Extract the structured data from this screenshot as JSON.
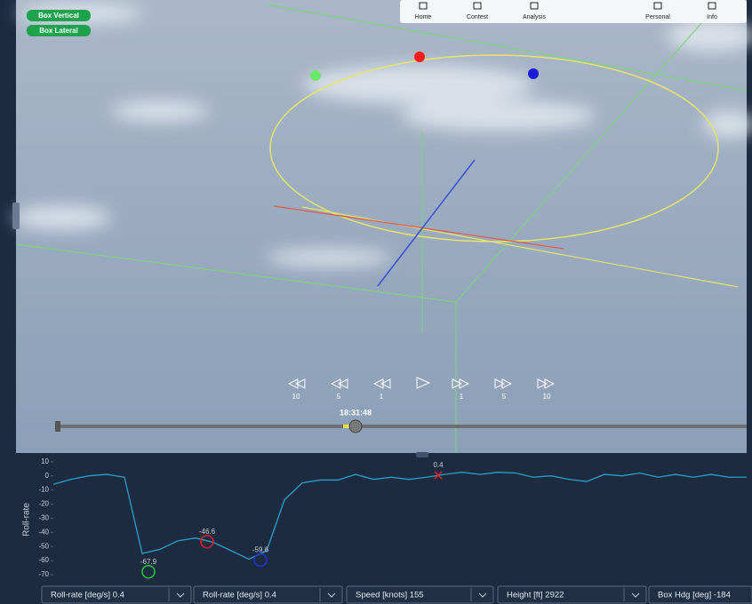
{
  "badges": [
    "Box Vertical",
    "Box Lateral"
  ],
  "nav": [
    "Home",
    "Contest",
    "Analysis",
    "Personal",
    "Info"
  ],
  "playback": {
    "rewind": [
      "10",
      "5",
      "1"
    ],
    "forward": [
      "1",
      "5",
      "10"
    ],
    "time": "18:31:48"
  },
  "plot": {
    "type": "line",
    "y_label": "Roll-rate",
    "color": "#2a9fc9",
    "ylim": [
      -75,
      13
    ],
    "yticks": [
      10,
      0,
      -10,
      -20,
      -30,
      -40,
      -50,
      -60,
      -70
    ],
    "values": [
      -6,
      -2.5,
      0,
      1,
      -1,
      -55,
      -52,
      -46,
      -44,
      -47,
      -53,
      -59,
      -53,
      -17,
      -5,
      -3,
      -3,
      1,
      -2.5,
      -1,
      -2.5,
      -1,
      1,
      2.5,
      1,
      2.5,
      2,
      -1,
      0,
      -2.5,
      -4,
      1,
      0,
      2,
      -1,
      1,
      -1,
      1,
      -1,
      -1
    ],
    "markers": [
      {
        "value": -67.9,
        "color": "#22cc33"
      },
      {
        "value": -46.6,
        "color": "#dd2222"
      },
      {
        "value": -59.6,
        "color": "#2233dd"
      },
      {
        "value": 0.4,
        "color": "#dd2222"
      }
    ]
  },
  "selectors": [
    "Roll-rate [deg/s] 0.4",
    "Roll-rate [deg/s] 0.4",
    "Speed [knots] 155",
    "Height [ft] 2922",
    "Box Hdg [deg] -184"
  ]
}
